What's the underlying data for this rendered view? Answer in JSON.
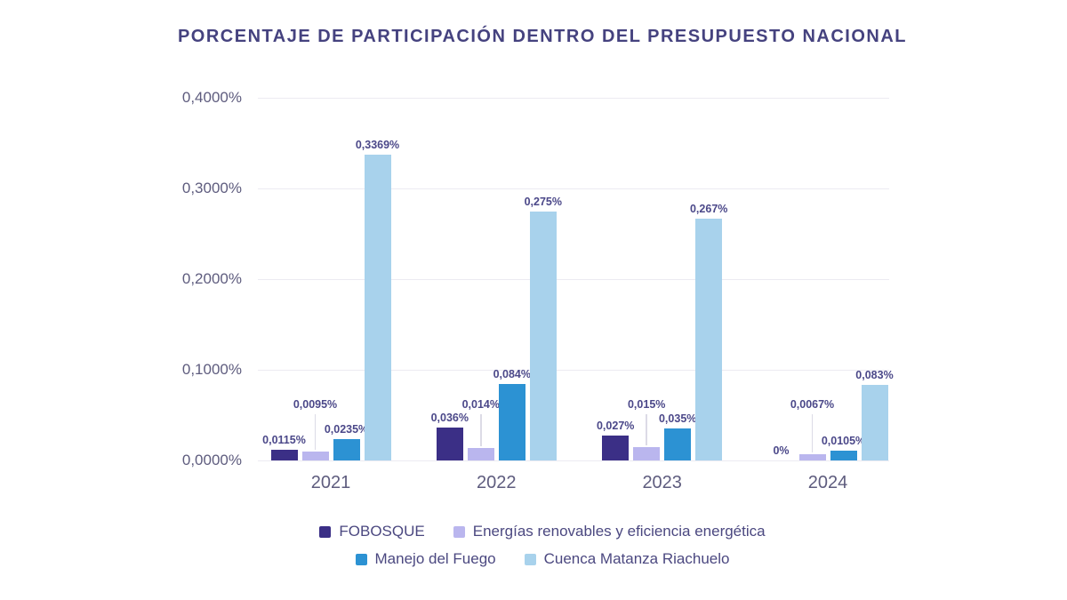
{
  "title": "PORCENTAJE DE PARTICIPACIÓN DENTRO DEL PRESUPUESTO NACIONAL",
  "colors": {
    "title_text": "#45427F",
    "axis_text": "#5E5C7E",
    "data_label_text": "#4B4889",
    "gridline": "#ECEBF2",
    "leader_line": "#DCDBE6",
    "background": "#FFFFFF"
  },
  "chart_data": {
    "type": "bar",
    "title": "PORCENTAJE DE PARTICIPACIÓN DENTRO DEL PRESUPUESTO NACIONAL",
    "xlabel": "",
    "ylabel": "",
    "grid": true,
    "legend_position": "bottom",
    "ylim": [
      0,
      0.4
    ],
    "y_axis": {
      "max": 0.4,
      "min": 0,
      "ticks": [
        "0,4000%",
        "0,3000%",
        "0,2000%",
        "0,1000%",
        "0,0000%"
      ]
    },
    "categories": [
      "2021",
      "2022",
      "2023",
      "2024"
    ],
    "series": [
      {
        "name": "FOBOSQUE",
        "color": "#3B2F86",
        "values": [
          0.0115,
          0.036,
          0.027,
          0
        ],
        "labels": [
          "0,0115%",
          "0,036%",
          "0,027%",
          "0%"
        ],
        "raised_labels": false
      },
      {
        "name": "Energías renovables y eficiencia energética",
        "color": "#BAB6EE",
        "values": [
          0.0095,
          0.014,
          0.015,
          0.0067
        ],
        "labels": [
          "0,0095%",
          "0,014%",
          "0,015%",
          "0,0067%"
        ],
        "raised_labels": true
      },
      {
        "name": "Manejo del Fuego",
        "color": "#2C92D3",
        "values": [
          0.0235,
          0.084,
          0.035,
          0.0105
        ],
        "labels": [
          "0,0235%",
          "0,084%",
          "0,035%",
          "0,0105%"
        ],
        "raised_labels": false
      },
      {
        "name": "Cuenca Matanza Riachuelo",
        "color": "#A8D2EC",
        "values": [
          0.3369,
          0.275,
          0.267,
          0.083
        ],
        "labels": [
          "0,3369%",
          "0,275%",
          "0,267%",
          "0,083%"
        ],
        "raised_labels": false
      }
    ]
  }
}
